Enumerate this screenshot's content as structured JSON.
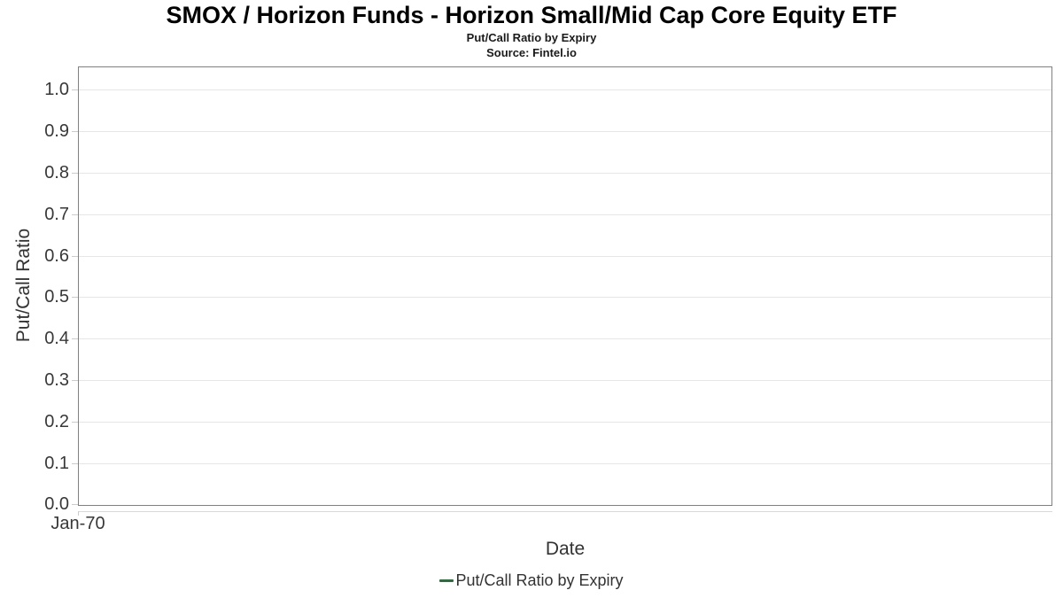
{
  "header": {
    "title": "SMOX / Horizon Funds - Horizon Small/Mid Cap Core Equity ETF",
    "subtitle": "Put/Call Ratio by Expiry",
    "source": "Source: Fintel.io"
  },
  "chart_data": {
    "type": "line",
    "title": "SMOX / Horizon Funds - Horizon Small/Mid Cap Core Equity ETF",
    "subtitle": "Put/Call Ratio by Expiry",
    "source": "Source: Fintel.io",
    "xlabel": "Date",
    "ylabel": "Put/Call Ratio",
    "x_ticks": [
      "Jan-70"
    ],
    "y_ticks": [
      0.0,
      0.1,
      0.2,
      0.3,
      0.4,
      0.5,
      0.6,
      0.7,
      0.8,
      0.9,
      1.0
    ],
    "ylim": [
      0,
      1.053
    ],
    "grid": true,
    "legend": {
      "position": "bottom",
      "entries": [
        {
          "label": "Put/Call Ratio by Expiry",
          "color": "#2e6b3e"
        }
      ]
    },
    "series": [
      {
        "name": "Put/Call Ratio by Expiry",
        "color": "#2e6b3e",
        "x": [],
        "y": []
      }
    ]
  },
  "colors": {
    "plot_border": "#808080",
    "gridline": "#e6e6e6",
    "tick": "#cccccc",
    "axis_text": "#383838",
    "accent_green": "#2e6b3e"
  }
}
